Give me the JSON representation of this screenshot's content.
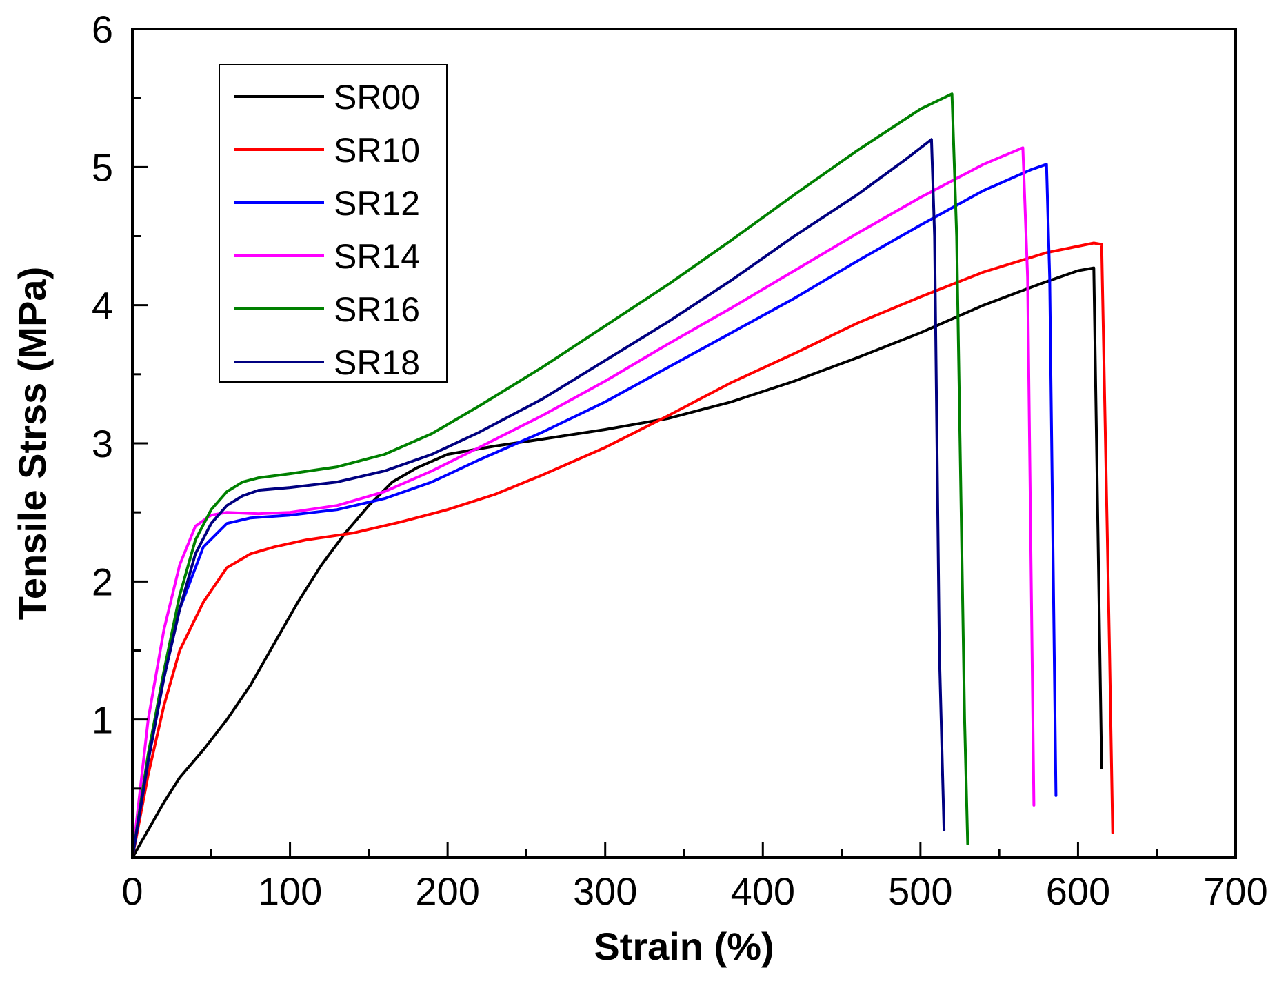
{
  "chart_data": {
    "type": "line",
    "xlabel": "Strain (%)",
    "ylabel": "Tensile Strss (MPa)",
    "xlim": [
      0,
      700
    ],
    "ylim": [
      0,
      6
    ],
    "xticks": [
      0,
      100,
      200,
      300,
      400,
      500,
      600,
      700
    ],
    "yticks": [
      1,
      2,
      3,
      4,
      5,
      6
    ],
    "grid": false,
    "legend_position": "top-left",
    "series": [
      {
        "name": "SR00",
        "color": "#000000",
        "x": [
          0,
          10,
          20,
          30,
          45,
          60,
          75,
          90,
          105,
          120,
          135,
          150,
          165,
          180,
          200,
          230,
          260,
          300,
          340,
          380,
          420,
          460,
          500,
          540,
          575,
          600,
          610,
          615
        ],
        "y": [
          0,
          0.2,
          0.4,
          0.58,
          0.78,
          1.0,
          1.25,
          1.55,
          1.85,
          2.12,
          2.35,
          2.55,
          2.72,
          2.82,
          2.92,
          2.98,
          3.03,
          3.1,
          3.18,
          3.3,
          3.45,
          3.62,
          3.8,
          4.0,
          4.15,
          4.25,
          4.27,
          0.65
        ]
      },
      {
        "name": "SR10",
        "color": "#ff0000",
        "x": [
          0,
          10,
          20,
          30,
          45,
          60,
          75,
          90,
          110,
          140,
          170,
          200,
          230,
          260,
          300,
          340,
          380,
          420,
          460,
          500,
          540,
          580,
          610,
          615,
          620,
          622
        ],
        "y": [
          0,
          0.6,
          1.1,
          1.5,
          1.85,
          2.1,
          2.2,
          2.25,
          2.3,
          2.35,
          2.43,
          2.52,
          2.63,
          2.77,
          2.97,
          3.2,
          3.44,
          3.65,
          3.87,
          4.06,
          4.24,
          4.38,
          4.45,
          4.44,
          1.5,
          0.18
        ]
      },
      {
        "name": "SR12",
        "color": "#0000ff",
        "x": [
          0,
          10,
          20,
          30,
          45,
          60,
          75,
          100,
          130,
          160,
          190,
          220,
          260,
          300,
          340,
          380,
          420,
          460,
          500,
          540,
          570,
          580,
          582,
          586
        ],
        "y": [
          0,
          0.7,
          1.3,
          1.8,
          2.25,
          2.42,
          2.46,
          2.48,
          2.52,
          2.6,
          2.72,
          2.88,
          3.08,
          3.3,
          3.55,
          3.8,
          4.05,
          4.32,
          4.58,
          4.83,
          4.98,
          5.02,
          4.2,
          0.45
        ]
      },
      {
        "name": "SR14",
        "color": "#ff00ff",
        "x": [
          0,
          10,
          20,
          30,
          40,
          50,
          60,
          80,
          100,
          130,
          160,
          190,
          220,
          260,
          300,
          340,
          380,
          420,
          460,
          500,
          540,
          565,
          568,
          572
        ],
        "y": [
          0,
          1.0,
          1.65,
          2.12,
          2.4,
          2.48,
          2.5,
          2.49,
          2.5,
          2.55,
          2.65,
          2.8,
          2.97,
          3.2,
          3.45,
          3.72,
          3.98,
          4.25,
          4.52,
          4.78,
          5.02,
          5.14,
          4.2,
          0.38
        ]
      },
      {
        "name": "SR16",
        "color": "#008000",
        "x": [
          0,
          10,
          20,
          30,
          40,
          50,
          60,
          70,
          80,
          100,
          130,
          160,
          190,
          220,
          260,
          300,
          340,
          380,
          420,
          460,
          500,
          520,
          523,
          528,
          530
        ],
        "y": [
          0,
          0.75,
          1.35,
          1.9,
          2.3,
          2.52,
          2.65,
          2.72,
          2.75,
          2.78,
          2.83,
          2.92,
          3.07,
          3.27,
          3.55,
          3.85,
          4.15,
          4.47,
          4.8,
          5.12,
          5.42,
          5.53,
          4.5,
          1.0,
          0.1
        ]
      },
      {
        "name": "SR18",
        "color": "#000080",
        "x": [
          0,
          10,
          20,
          30,
          40,
          50,
          60,
          70,
          80,
          100,
          130,
          160,
          190,
          220,
          260,
          300,
          340,
          380,
          420,
          460,
          490,
          507,
          509,
          512,
          515
        ],
        "y": [
          0,
          0.7,
          1.3,
          1.8,
          2.2,
          2.42,
          2.55,
          2.62,
          2.66,
          2.68,
          2.72,
          2.8,
          2.92,
          3.08,
          3.32,
          3.6,
          3.88,
          4.18,
          4.5,
          4.8,
          5.05,
          5.2,
          4.5,
          1.5,
          0.2
        ]
      }
    ]
  }
}
